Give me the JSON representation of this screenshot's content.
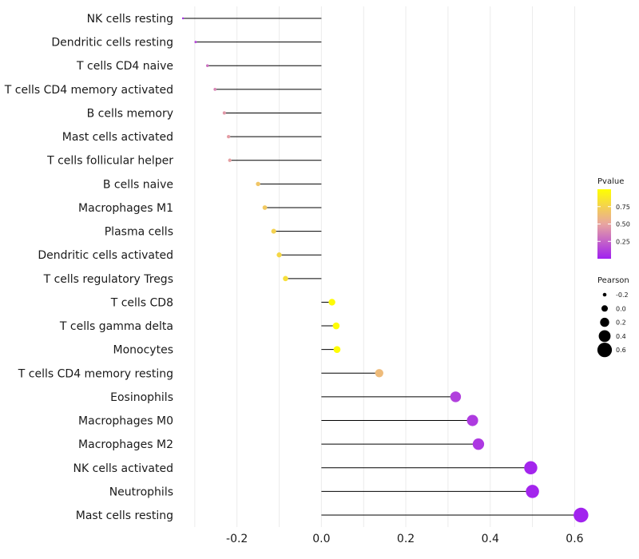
{
  "chart_data": {
    "type": "lollipop",
    "orientation": "horizontal",
    "title": "",
    "xlabel": "",
    "ylabel": "",
    "xlim": [
      -0.33,
      0.62
    ],
    "x_ticks": [
      -0.2,
      0.0,
      0.2,
      0.4,
      0.6
    ],
    "x_tick_labels": [
      "-0.2",
      "0.0",
      "0.2",
      "0.4",
      "0.6"
    ],
    "grid": true,
    "baseline": 0,
    "categories": [
      "NK cells resting",
      "Dendritic cells resting",
      "T cells CD4 naive",
      "T cells CD4 memory activated",
      "B cells memory",
      "Mast cells activated",
      "T cells follicular helper",
      "B cells naive",
      "Macrophages M1",
      "Plasma cells",
      "Dendritic cells activated",
      "T cells regulatory  Tregs",
      "T cells CD8",
      "T cells gamma delta",
      "Monocytes",
      "T cells CD4 memory resting",
      "Eosinophils",
      "Macrophages M0",
      "Macrophages M2",
      "NK cells activated",
      "Neutrophils",
      "Mast cells resting"
    ],
    "pearson": [
      -0.328,
      -0.298,
      -0.27,
      -0.252,
      -0.23,
      -0.22,
      -0.217,
      -0.15,
      -0.134,
      -0.113,
      -0.1,
      -0.085,
      0.025,
      0.035,
      0.037,
      0.137,
      0.318,
      0.358,
      0.372,
      0.496,
      0.5,
      0.615
    ],
    "pvalue": [
      0.05,
      0.15,
      0.3,
      0.38,
      0.45,
      0.47,
      0.48,
      0.68,
      0.7,
      0.75,
      0.78,
      0.82,
      0.98,
      0.99,
      0.99,
      0.62,
      0.12,
      0.1,
      0.09,
      0.02,
      0.02,
      0.01
    ],
    "legend_position": "right",
    "legends": {
      "color": {
        "title": "Pvalue",
        "variable": "Pvalue",
        "ticks": [
          0.25,
          0.5,
          0.75
        ],
        "tick_labels": [
          "0.25",
          "0.50",
          "0.75"
        ],
        "range": [
          0.0,
          1.0
        ],
        "low_color": "#a020f0",
        "mid_color": "#e8a5a0",
        "high_color": "#ffff00"
      },
      "size": {
        "title": "Pearson",
        "variable": "Pearson",
        "values": [
          -0.2,
          0.0,
          0.2,
          0.4,
          0.6
        ],
        "labels": [
          "-0.2",
          "0.0",
          "0.2",
          "0.4",
          "0.6"
        ]
      }
    }
  }
}
